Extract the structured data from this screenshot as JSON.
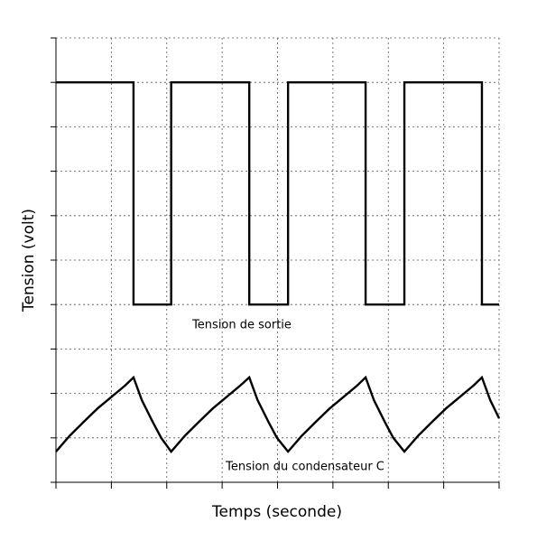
{
  "chart_data": {
    "type": "line",
    "x_label": "Temps (seconde)",
    "y_label": "Tension (volt)",
    "xlim": [
      0,
      8
    ],
    "ylim": [
      0,
      10
    ],
    "xticks": [
      0,
      1,
      2,
      3,
      4,
      5,
      6,
      7,
      8
    ],
    "yticks": [
      0,
      1,
      2,
      3,
      4,
      5,
      6,
      7,
      8,
      9,
      10
    ],
    "grid": true,
    "tick_labels": false,
    "annotations": [
      "Tension de sortie",
      "Tension du condensateur C"
    ],
    "series": [
      {
        "color": "#000000",
        "x": [
          0,
          1.4,
          1.4,
          2.08,
          2.08,
          3.49,
          3.49,
          4.19,
          4.19,
          5.59,
          5.59,
          6.29,
          6.29,
          7.69,
          7.69,
          8
        ],
        "values": [
          9,
          9,
          4,
          4,
          9,
          9,
          4,
          4,
          9,
          9,
          4,
          4,
          9,
          9,
          4,
          4
        ]
      },
      {
        "color": "#000000",
        "x": [
          0,
          0.25,
          0.5,
          0.75,
          1.0,
          1.25,
          1.4,
          1.55,
          1.75,
          1.9,
          2.08,
          2.33,
          2.58,
          2.83,
          3.08,
          3.33,
          3.49,
          3.64,
          3.84,
          3.99,
          4.19,
          4.44,
          4.69,
          4.94,
          5.19,
          5.44,
          5.59,
          5.74,
          5.94,
          6.09,
          6.29,
          6.54,
          6.79,
          7.04,
          7.29,
          7.54,
          7.69,
          7.84,
          8.0
        ],
        "values": [
          0.69,
          1.05,
          1.36,
          1.66,
          1.92,
          2.18,
          2.36,
          1.85,
          1.35,
          1.0,
          0.69,
          1.05,
          1.36,
          1.66,
          1.92,
          2.18,
          2.36,
          1.85,
          1.35,
          1.0,
          0.69,
          1.05,
          1.36,
          1.66,
          1.92,
          2.18,
          2.36,
          1.85,
          1.35,
          1.0,
          0.69,
          1.05,
          1.36,
          1.66,
          1.92,
          2.18,
          2.36,
          1.85,
          1.44
        ]
      }
    ]
  }
}
